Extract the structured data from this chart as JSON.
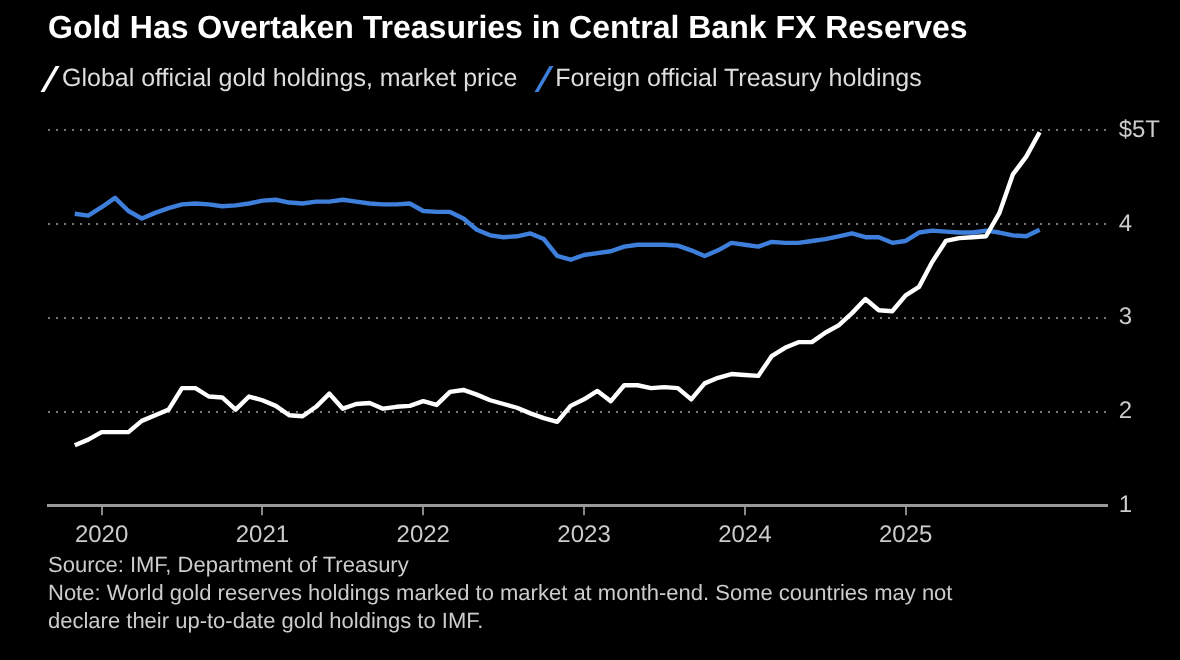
{
  "chart_data": {
    "type": "line",
    "title": "Gold Has Overtaken Treasuries in Central Bank FX Reserves",
    "x": [
      "2019-11",
      "2019-12",
      "2020-01",
      "2020-02",
      "2020-03",
      "2020-04",
      "2020-05",
      "2020-06",
      "2020-07",
      "2020-08",
      "2020-09",
      "2020-10",
      "2020-11",
      "2020-12",
      "2021-01",
      "2021-02",
      "2021-03",
      "2021-04",
      "2021-05",
      "2021-06",
      "2021-07",
      "2021-08",
      "2021-09",
      "2021-10",
      "2021-11",
      "2021-12",
      "2022-01",
      "2022-02",
      "2022-03",
      "2022-04",
      "2022-05",
      "2022-06",
      "2022-07",
      "2022-08",
      "2022-09",
      "2022-10",
      "2022-11",
      "2022-12",
      "2023-01",
      "2023-02",
      "2023-03",
      "2023-04",
      "2023-05",
      "2023-06",
      "2023-07",
      "2023-08",
      "2023-09",
      "2023-10",
      "2023-11",
      "2023-12",
      "2024-01",
      "2024-02",
      "2024-03",
      "2024-04",
      "2024-05",
      "2024-06",
      "2024-07",
      "2024-08",
      "2024-09",
      "2024-10",
      "2024-11",
      "2024-12",
      "2025-01",
      "2025-02",
      "2025-03",
      "2025-04",
      "2025-05",
      "2025-06",
      "2025-07",
      "2025-08",
      "2025-09",
      "2025-10",
      "2025-11"
    ],
    "series": [
      {
        "name": "Global official gold holdings, market price",
        "color": "#ffffff",
        "values": [
          1.64,
          1.7,
          1.78,
          1.78,
          1.78,
          1.9,
          1.96,
          2.02,
          2.25,
          2.25,
          2.16,
          2.15,
          2.02,
          2.16,
          2.12,
          2.06,
          1.96,
          1.95,
          2.05,
          2.19,
          2.03,
          2.08,
          2.09,
          2.03,
          2.05,
          2.06,
          2.11,
          2.07,
          2.21,
          2.23,
          2.18,
          2.12,
          2.08,
          2.04,
          1.98,
          1.93,
          1.89,
          2.06,
          2.13,
          2.22,
          2.11,
          2.28,
          2.28,
          2.25,
          2.26,
          2.25,
          2.13,
          2.3,
          2.36,
          2.4,
          2.39,
          2.38,
          2.59,
          2.68,
          2.74,
          2.74,
          2.84,
          2.92,
          3.05,
          3.2,
          3.08,
          3.07,
          3.24,
          3.33,
          3.6,
          3.82,
          3.85,
          3.86,
          3.87,
          4.12,
          4.53,
          4.72,
          4.98
        ]
      },
      {
        "name": "Foreign official Treasury holdings",
        "color": "#3f7fdc",
        "values": [
          4.11,
          4.09,
          4.18,
          4.28,
          4.14,
          4.06,
          4.12,
          4.17,
          4.21,
          4.22,
          4.21,
          4.19,
          4.2,
          4.22,
          4.25,
          4.26,
          4.23,
          4.22,
          4.24,
          4.24,
          4.26,
          4.24,
          4.22,
          4.21,
          4.21,
          4.22,
          4.14,
          4.13,
          4.13,
          4.06,
          3.94,
          3.88,
          3.86,
          3.87,
          3.9,
          3.84,
          3.66,
          3.62,
          3.67,
          3.69,
          3.71,
          3.76,
          3.78,
          3.78,
          3.78,
          3.77,
          3.72,
          3.66,
          3.72,
          3.8,
          3.78,
          3.76,
          3.81,
          3.8,
          3.8,
          3.82,
          3.84,
          3.87,
          3.9,
          3.86,
          3.86,
          3.8,
          3.82,
          3.91,
          3.93,
          3.92,
          3.91,
          3.91,
          3.93,
          3.91,
          3.88,
          3.87,
          3.94
        ]
      }
    ],
    "xlim": [
      "2019-09",
      "2026-04"
    ],
    "xticks": [
      "2020",
      "2021",
      "2022",
      "2023",
      "2024",
      "2025"
    ],
    "ylim": [
      1,
      5
    ],
    "yticks": [
      1,
      2,
      3,
      4,
      {
        "value": 5,
        "label": "$5T"
      }
    ],
    "grid": "y",
    "legend": "top left",
    "marker": "none",
    "line_style": "solid",
    "annotations": [
      "Source: IMF, Department of Treasury",
      "Note: World gold reserves holdings marked to market at month-end. Some countries may not declare their up-to-date gold holdings to IMF."
    ]
  }
}
